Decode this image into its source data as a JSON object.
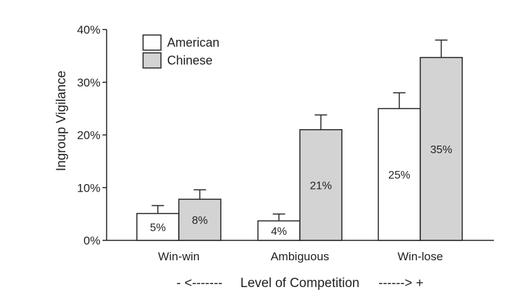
{
  "chart_data": {
    "type": "bar",
    "ylabel": "Ingroup Vigilance",
    "xlabel": "Level of Competition",
    "xlabel_left": "- <-------",
    "xlabel_right": "------> +",
    "categories": [
      "Win-win",
      "Ambiguous",
      "Win-lose"
    ],
    "ylim": [
      0,
      40
    ],
    "yticks": [
      "0%",
      "10%",
      "20%",
      "30%",
      "40%"
    ],
    "ytick_values": [
      0,
      10,
      20,
      30,
      40
    ],
    "legend_position": "top-left",
    "series": [
      {
        "name": "American",
        "color": "#ffffff",
        "values": [
          5,
          4,
          25
        ],
        "value_labels": [
          "5%",
          "4%",
          "25%"
        ],
        "error_upper": [
          6.6,
          5.0,
          28.0
        ],
        "display_values": [
          5.1,
          3.7,
          25.0
        ]
      },
      {
        "name": "Chinese",
        "color": "#d3d3d3",
        "values": [
          8,
          21,
          35
        ],
        "value_labels": [
          "8%",
          "21%",
          "35%"
        ],
        "error_upper": [
          9.6,
          23.8,
          38.0
        ],
        "display_values": [
          7.8,
          21.0,
          34.7
        ]
      }
    ]
  }
}
